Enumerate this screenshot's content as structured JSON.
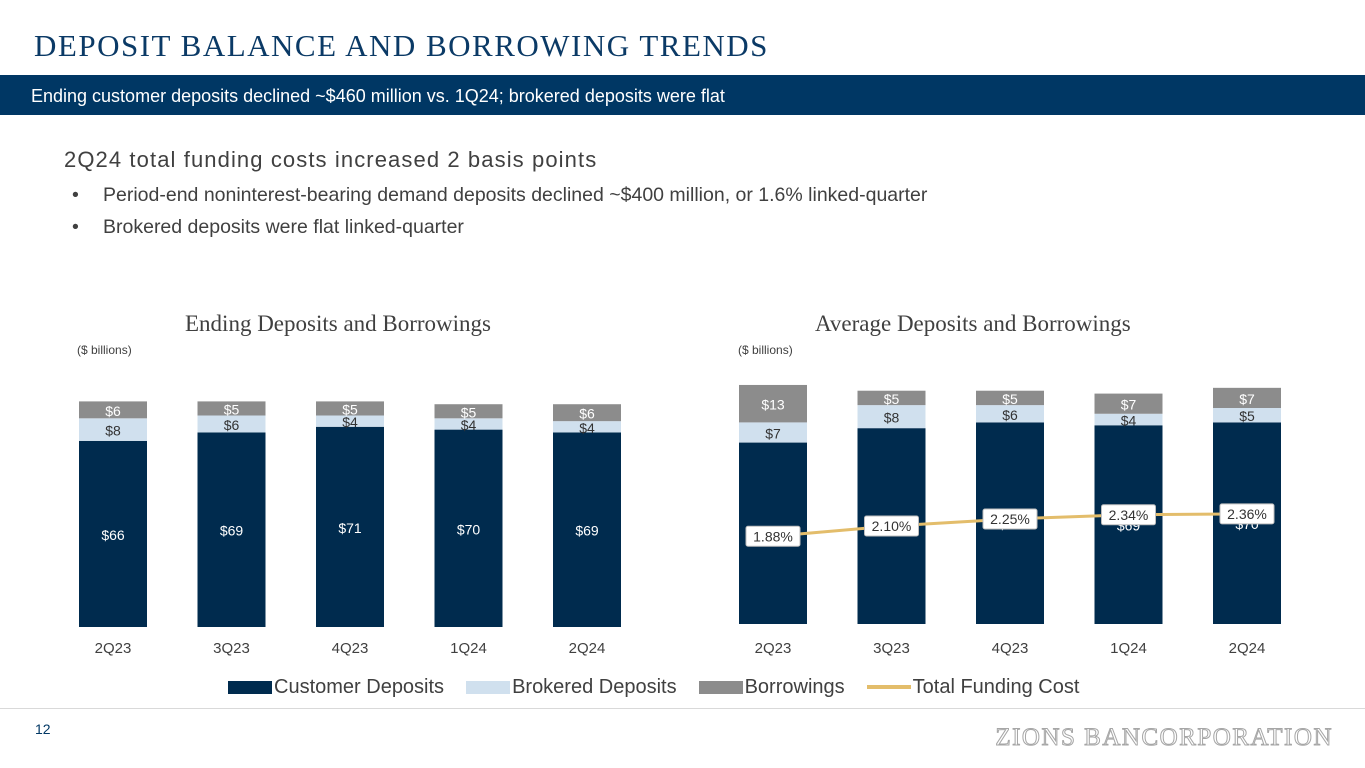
{
  "header": {
    "title": "DEPOSIT BALANCE AND BORROWING TRENDS",
    "banner": "Ending customer deposits declined ~$460 million vs. 1Q24; brokered deposits were flat"
  },
  "summary": {
    "headline": "2Q24 total funding costs increased 2 basis points",
    "bullets": [
      "Period-end noninterest-bearing demand deposits declined ~$400 million, or 1.6% linked-quarter",
      "Brokered deposits were flat linked-quarter"
    ]
  },
  "legend": {
    "customer": "Customer Deposits",
    "brokered": "Brokered Deposits",
    "borrowings": "Borrowings",
    "funding_cost": "Total Funding Cost"
  },
  "colors": {
    "customer": "#002b4e",
    "brokered": "#d0e0ee",
    "borrowings": "#8c8c8c",
    "funding_cost": "#e3bd6b",
    "banner": "#003764"
  },
  "chart_data": [
    {
      "type": "bar",
      "stacked": true,
      "title": "Ending Deposits and Borrowings",
      "units": "($ billions)",
      "categories": [
        "2Q23",
        "3Q23",
        "4Q23",
        "1Q24",
        "2Q24"
      ],
      "series": [
        {
          "name": "Customer Deposits",
          "values": [
            66,
            69,
            71,
            70,
            69
          ],
          "labels": [
            "$66",
            "$69",
            "$71",
            "$70",
            "$69"
          ]
        },
        {
          "name": "Brokered Deposits",
          "values": [
            8,
            6,
            4,
            4,
            4
          ],
          "labels": [
            "$8",
            "$6",
            "$4",
            "$4",
            "$4"
          ]
        },
        {
          "name": "Borrowings",
          "values": [
            6,
            5,
            5,
            5,
            6
          ],
          "labels": [
            "$6",
            "$5",
            "$5",
            "$5",
            "$6"
          ]
        }
      ],
      "ylim": [
        0,
        85
      ]
    },
    {
      "type": "bar",
      "stacked": true,
      "title": "Average Deposits and Borrowings",
      "units": "($ billions)",
      "categories": [
        "2Q23",
        "3Q23",
        "4Q23",
        "1Q24",
        "2Q24"
      ],
      "series": [
        {
          "name": "Customer Deposits",
          "values": [
            63,
            68,
            70,
            69,
            70
          ],
          "labels": [
            "$63",
            "$68",
            "$70",
            "$69",
            "$70"
          ]
        },
        {
          "name": "Brokered Deposits",
          "values": [
            7,
            8,
            6,
            4,
            5
          ],
          "labels": [
            "$7",
            "$8",
            "$6",
            "$4",
            "$5"
          ]
        },
        {
          "name": "Borrowings",
          "values": [
            13,
            5,
            5,
            7,
            7
          ],
          "labels": [
            "$13",
            "$5",
            "$5",
            "$7",
            "$7"
          ]
        }
      ],
      "ylim": [
        0,
        85
      ],
      "line": {
        "name": "Total Funding Cost",
        "values": [
          1.88,
          2.1,
          2.25,
          2.34,
          2.36
        ],
        "labels": [
          "1.88%",
          "2.10%",
          "2.25%",
          "2.34%",
          "2.36%"
        ],
        "ylim": [
          0,
          4.8
        ]
      }
    }
  ],
  "footer": {
    "page_number": "12",
    "logo_text": "ZIONS BANCORPORATION"
  }
}
